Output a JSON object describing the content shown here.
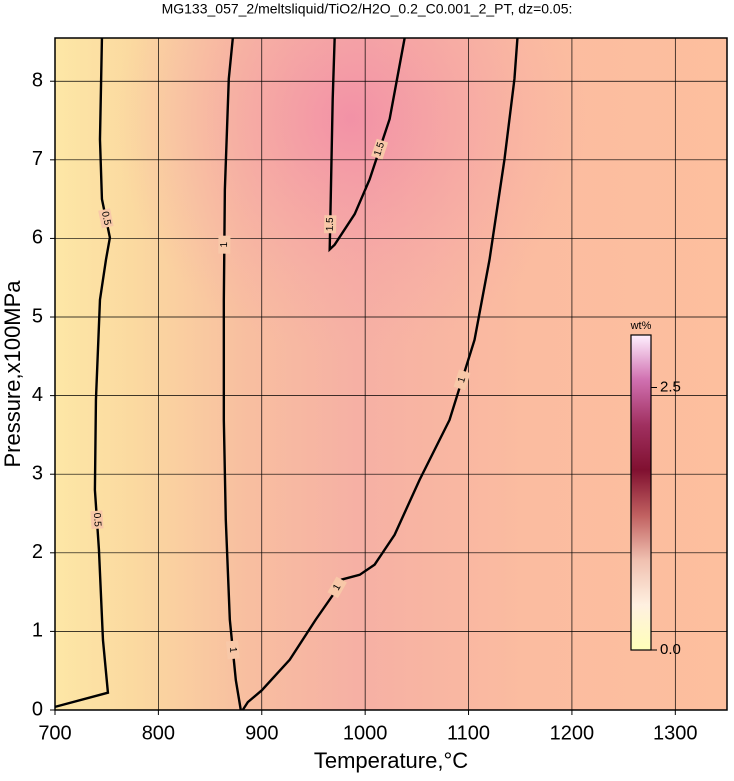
{
  "chart_data": {
    "type": "contour",
    "title": "MG133_057_2/meltsliquid/TiO2/H2O_0.2_C0.001_2_PT, dz=0.05:",
    "x_label": "Temperature,°C",
    "y_label": "Pressure,x100MPa",
    "xlim": [
      700,
      1350
    ],
    "ylim": [
      0,
      8.55
    ],
    "xticks": [
      700,
      800,
      900,
      1000,
      1100,
      1200,
      1300
    ],
    "yticks": [
      0,
      1,
      2,
      3,
      4,
      5,
      6,
      7,
      8
    ],
    "grid": true,
    "contours": [
      {
        "label": "0.5",
        "level": 0.5,
        "x": [
          700,
          751.2,
          746.4,
          742.5,
          738.6,
          739.6,
          743.5,
          749.3,
          753.1,
          745.4,
          743.5,
          745.4
        ],
        "y": [
          0.04,
          0.22,
          0.89,
          2.04,
          2.8,
          3.95,
          5.22,
          5.73,
          6.01,
          6.5,
          7.26,
          8.55
        ]
      },
      {
        "label": "1",
        "level": 1,
        "x": [
          872.0,
          868.1,
          864.3,
          863.3,
          863.3,
          865.2,
          869.1,
          874.9,
          879.7
        ],
        "y": [
          8.55,
          8.03,
          6.62,
          5.22,
          3.69,
          2.42,
          1.15,
          0.38,
          0
        ]
      },
      {
        "label": "1",
        "level": 1,
        "x": [
          881.6,
          886.5,
          900,
          927.1,
          952.2,
          968.6,
          977.3,
          994.7,
          1009.2,
          1028.5,
          1052.7,
          1081.6,
          1105.8,
          1120.3,
          1134.8,
          1144.4,
          1147.3
        ],
        "y": [
          0,
          0.1,
          0.25,
          0.64,
          1.15,
          1.46,
          1.66,
          1.72,
          1.85,
          2.23,
          2.93,
          3.69,
          4.71,
          5.73,
          7.01,
          8.03,
          8.55
        ]
      },
      {
        "label": "1.5",
        "level": 1.5,
        "x": [
          970.5,
          968.6,
          966.7,
          965.7,
          970.5,
          989.9,
          1004.3,
          1023.7,
          1038.2
        ],
        "y": [
          8.55,
          7.77,
          6.5,
          5.86,
          5.92,
          6.31,
          6.75,
          7.52,
          8.55
        ]
      }
    ],
    "colorbar": {
      "title": "wt%",
      "lim": [
        0,
        3
      ],
      "ticks": [
        {
          "value": 0,
          "label": "0.0"
        },
        {
          "value": 2.5,
          "label": "2.5"
        }
      ],
      "colors": [
        "#ffffb8",
        "#fff0e0",
        "#f0c0b0",
        "#c06060",
        "#801030",
        "#a03060",
        "#d070b0",
        "#fff0ff"
      ]
    }
  }
}
